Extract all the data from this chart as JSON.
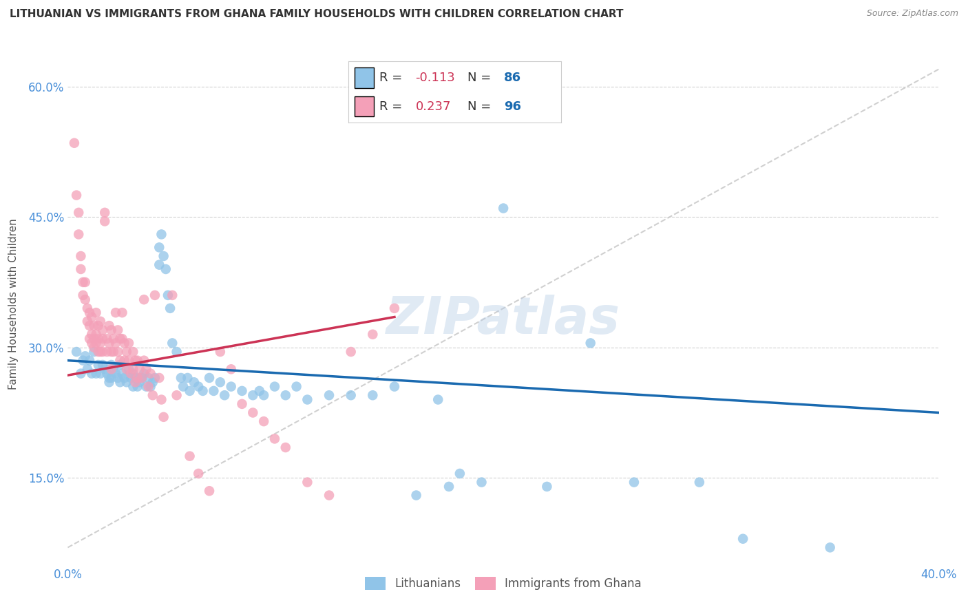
{
  "title": "LITHUANIAN VS IMMIGRANTS FROM GHANA FAMILY HOUSEHOLDS WITH CHILDREN CORRELATION CHART",
  "source": "Source: ZipAtlas.com",
  "ylabel": "Family Households with Children",
  "xlim": [
    0.0,
    0.4
  ],
  "ylim": [
    0.05,
    0.65
  ],
  "yticks": [
    0.15,
    0.3,
    0.45,
    0.6
  ],
  "ytick_labels": [
    "15.0%",
    "30.0%",
    "45.0%",
    "60.0%"
  ],
  "xticks": [
    0.0,
    0.1,
    0.2,
    0.3,
    0.4
  ],
  "xtick_labels": [
    "0.0%",
    "",
    "",
    "",
    "40.0%"
  ],
  "legend_labels_bottom": [
    "Lithuanians",
    "Immigrants from Ghana"
  ],
  "blue_color": "#90c4e8",
  "pink_color": "#f4a0b8",
  "blue_line_color": "#1a6ab0",
  "pink_line_color": "#cc3355",
  "diag_line_color": "#c8c8c8",
  "watermark": "ZIPatlas",
  "R_blue": -0.113,
  "N_blue": 86,
  "R_pink": 0.237,
  "N_pink": 96,
  "blue_line_x": [
    0.0,
    0.4
  ],
  "blue_line_y": [
    0.285,
    0.225
  ],
  "pink_line_x": [
    0.0,
    0.15
  ],
  "pink_line_y": [
    0.268,
    0.335
  ],
  "diag_line_x": [
    0.0,
    0.4
  ],
  "diag_line_y": [
    0.07,
    0.62
  ],
  "blue_points": [
    [
      0.004,
      0.295
    ],
    [
      0.006,
      0.27
    ],
    [
      0.007,
      0.285
    ],
    [
      0.008,
      0.29
    ],
    [
      0.009,
      0.275
    ],
    [
      0.01,
      0.285
    ],
    [
      0.011,
      0.27
    ],
    [
      0.012,
      0.295
    ],
    [
      0.013,
      0.27
    ],
    [
      0.014,
      0.28
    ],
    [
      0.015,
      0.27
    ],
    [
      0.016,
      0.28
    ],
    [
      0.017,
      0.275
    ],
    [
      0.018,
      0.27
    ],
    [
      0.019,
      0.265
    ],
    [
      0.019,
      0.26
    ],
    [
      0.02,
      0.28
    ],
    [
      0.02,
      0.265
    ],
    [
      0.021,
      0.275
    ],
    [
      0.022,
      0.27
    ],
    [
      0.023,
      0.265
    ],
    [
      0.024,
      0.28
    ],
    [
      0.024,
      0.26
    ],
    [
      0.025,
      0.27
    ],
    [
      0.026,
      0.265
    ],
    [
      0.027,
      0.26
    ],
    [
      0.028,
      0.275
    ],
    [
      0.029,
      0.265
    ],
    [
      0.03,
      0.27
    ],
    [
      0.03,
      0.255
    ],
    [
      0.031,
      0.265
    ],
    [
      0.032,
      0.255
    ],
    [
      0.033,
      0.26
    ],
    [
      0.034,
      0.265
    ],
    [
      0.035,
      0.27
    ],
    [
      0.036,
      0.255
    ],
    [
      0.037,
      0.265
    ],
    [
      0.038,
      0.255
    ],
    [
      0.039,
      0.26
    ],
    [
      0.04,
      0.265
    ],
    [
      0.042,
      0.415
    ],
    [
      0.042,
      0.395
    ],
    [
      0.043,
      0.43
    ],
    [
      0.044,
      0.405
    ],
    [
      0.045,
      0.39
    ],
    [
      0.046,
      0.36
    ],
    [
      0.047,
      0.345
    ],
    [
      0.048,
      0.305
    ],
    [
      0.05,
      0.295
    ],
    [
      0.052,
      0.265
    ],
    [
      0.053,
      0.255
    ],
    [
      0.055,
      0.265
    ],
    [
      0.056,
      0.25
    ],
    [
      0.058,
      0.26
    ],
    [
      0.06,
      0.255
    ],
    [
      0.062,
      0.25
    ],
    [
      0.065,
      0.265
    ],
    [
      0.067,
      0.25
    ],
    [
      0.07,
      0.26
    ],
    [
      0.072,
      0.245
    ],
    [
      0.075,
      0.255
    ],
    [
      0.08,
      0.25
    ],
    [
      0.085,
      0.245
    ],
    [
      0.088,
      0.25
    ],
    [
      0.09,
      0.245
    ],
    [
      0.095,
      0.255
    ],
    [
      0.1,
      0.245
    ],
    [
      0.105,
      0.255
    ],
    [
      0.11,
      0.24
    ],
    [
      0.12,
      0.245
    ],
    [
      0.13,
      0.245
    ],
    [
      0.14,
      0.245
    ],
    [
      0.15,
      0.255
    ],
    [
      0.16,
      0.13
    ],
    [
      0.17,
      0.24
    ],
    [
      0.175,
      0.14
    ],
    [
      0.18,
      0.155
    ],
    [
      0.19,
      0.145
    ],
    [
      0.2,
      0.46
    ],
    [
      0.22,
      0.14
    ],
    [
      0.24,
      0.305
    ],
    [
      0.26,
      0.145
    ],
    [
      0.29,
      0.145
    ],
    [
      0.31,
      0.08
    ],
    [
      0.35,
      0.07
    ]
  ],
  "pink_points": [
    [
      0.003,
      0.535
    ],
    [
      0.004,
      0.475
    ],
    [
      0.005,
      0.455
    ],
    [
      0.005,
      0.43
    ],
    [
      0.006,
      0.405
    ],
    [
      0.006,
      0.39
    ],
    [
      0.007,
      0.375
    ],
    [
      0.007,
      0.36
    ],
    [
      0.008,
      0.375
    ],
    [
      0.008,
      0.355
    ],
    [
      0.009,
      0.345
    ],
    [
      0.009,
      0.33
    ],
    [
      0.01,
      0.34
    ],
    [
      0.01,
      0.325
    ],
    [
      0.01,
      0.31
    ],
    [
      0.011,
      0.335
    ],
    [
      0.011,
      0.315
    ],
    [
      0.011,
      0.305
    ],
    [
      0.012,
      0.325
    ],
    [
      0.012,
      0.31
    ],
    [
      0.012,
      0.3
    ],
    [
      0.013,
      0.34
    ],
    [
      0.013,
      0.315
    ],
    [
      0.013,
      0.305
    ],
    [
      0.014,
      0.325
    ],
    [
      0.014,
      0.31
    ],
    [
      0.014,
      0.295
    ],
    [
      0.015,
      0.33
    ],
    [
      0.015,
      0.305
    ],
    [
      0.015,
      0.295
    ],
    [
      0.016,
      0.32
    ],
    [
      0.016,
      0.31
    ],
    [
      0.016,
      0.295
    ],
    [
      0.017,
      0.455
    ],
    [
      0.017,
      0.445
    ],
    [
      0.018,
      0.31
    ],
    [
      0.018,
      0.295
    ],
    [
      0.019,
      0.325
    ],
    [
      0.019,
      0.305
    ],
    [
      0.02,
      0.32
    ],
    [
      0.02,
      0.295
    ],
    [
      0.02,
      0.275
    ],
    [
      0.021,
      0.31
    ],
    [
      0.021,
      0.295
    ],
    [
      0.022,
      0.34
    ],
    [
      0.022,
      0.305
    ],
    [
      0.023,
      0.32
    ],
    [
      0.023,
      0.295
    ],
    [
      0.024,
      0.31
    ],
    [
      0.024,
      0.285
    ],
    [
      0.025,
      0.34
    ],
    [
      0.025,
      0.31
    ],
    [
      0.026,
      0.305
    ],
    [
      0.026,
      0.285
    ],
    [
      0.027,
      0.295
    ],
    [
      0.027,
      0.275
    ],
    [
      0.028,
      0.305
    ],
    [
      0.028,
      0.285
    ],
    [
      0.029,
      0.27
    ],
    [
      0.03,
      0.295
    ],
    [
      0.03,
      0.275
    ],
    [
      0.031,
      0.285
    ],
    [
      0.031,
      0.26
    ],
    [
      0.032,
      0.285
    ],
    [
      0.032,
      0.265
    ],
    [
      0.033,
      0.275
    ],
    [
      0.034,
      0.265
    ],
    [
      0.035,
      0.355
    ],
    [
      0.035,
      0.285
    ],
    [
      0.036,
      0.275
    ],
    [
      0.037,
      0.255
    ],
    [
      0.038,
      0.27
    ],
    [
      0.039,
      0.245
    ],
    [
      0.04,
      0.36
    ],
    [
      0.042,
      0.265
    ],
    [
      0.043,
      0.24
    ],
    [
      0.044,
      0.22
    ],
    [
      0.048,
      0.36
    ],
    [
      0.05,
      0.245
    ],
    [
      0.056,
      0.175
    ],
    [
      0.06,
      0.155
    ],
    [
      0.065,
      0.135
    ],
    [
      0.07,
      0.295
    ],
    [
      0.075,
      0.275
    ],
    [
      0.08,
      0.235
    ],
    [
      0.085,
      0.225
    ],
    [
      0.09,
      0.215
    ],
    [
      0.095,
      0.195
    ],
    [
      0.1,
      0.185
    ],
    [
      0.11,
      0.145
    ],
    [
      0.12,
      0.13
    ],
    [
      0.13,
      0.295
    ],
    [
      0.14,
      0.315
    ],
    [
      0.15,
      0.345
    ]
  ]
}
